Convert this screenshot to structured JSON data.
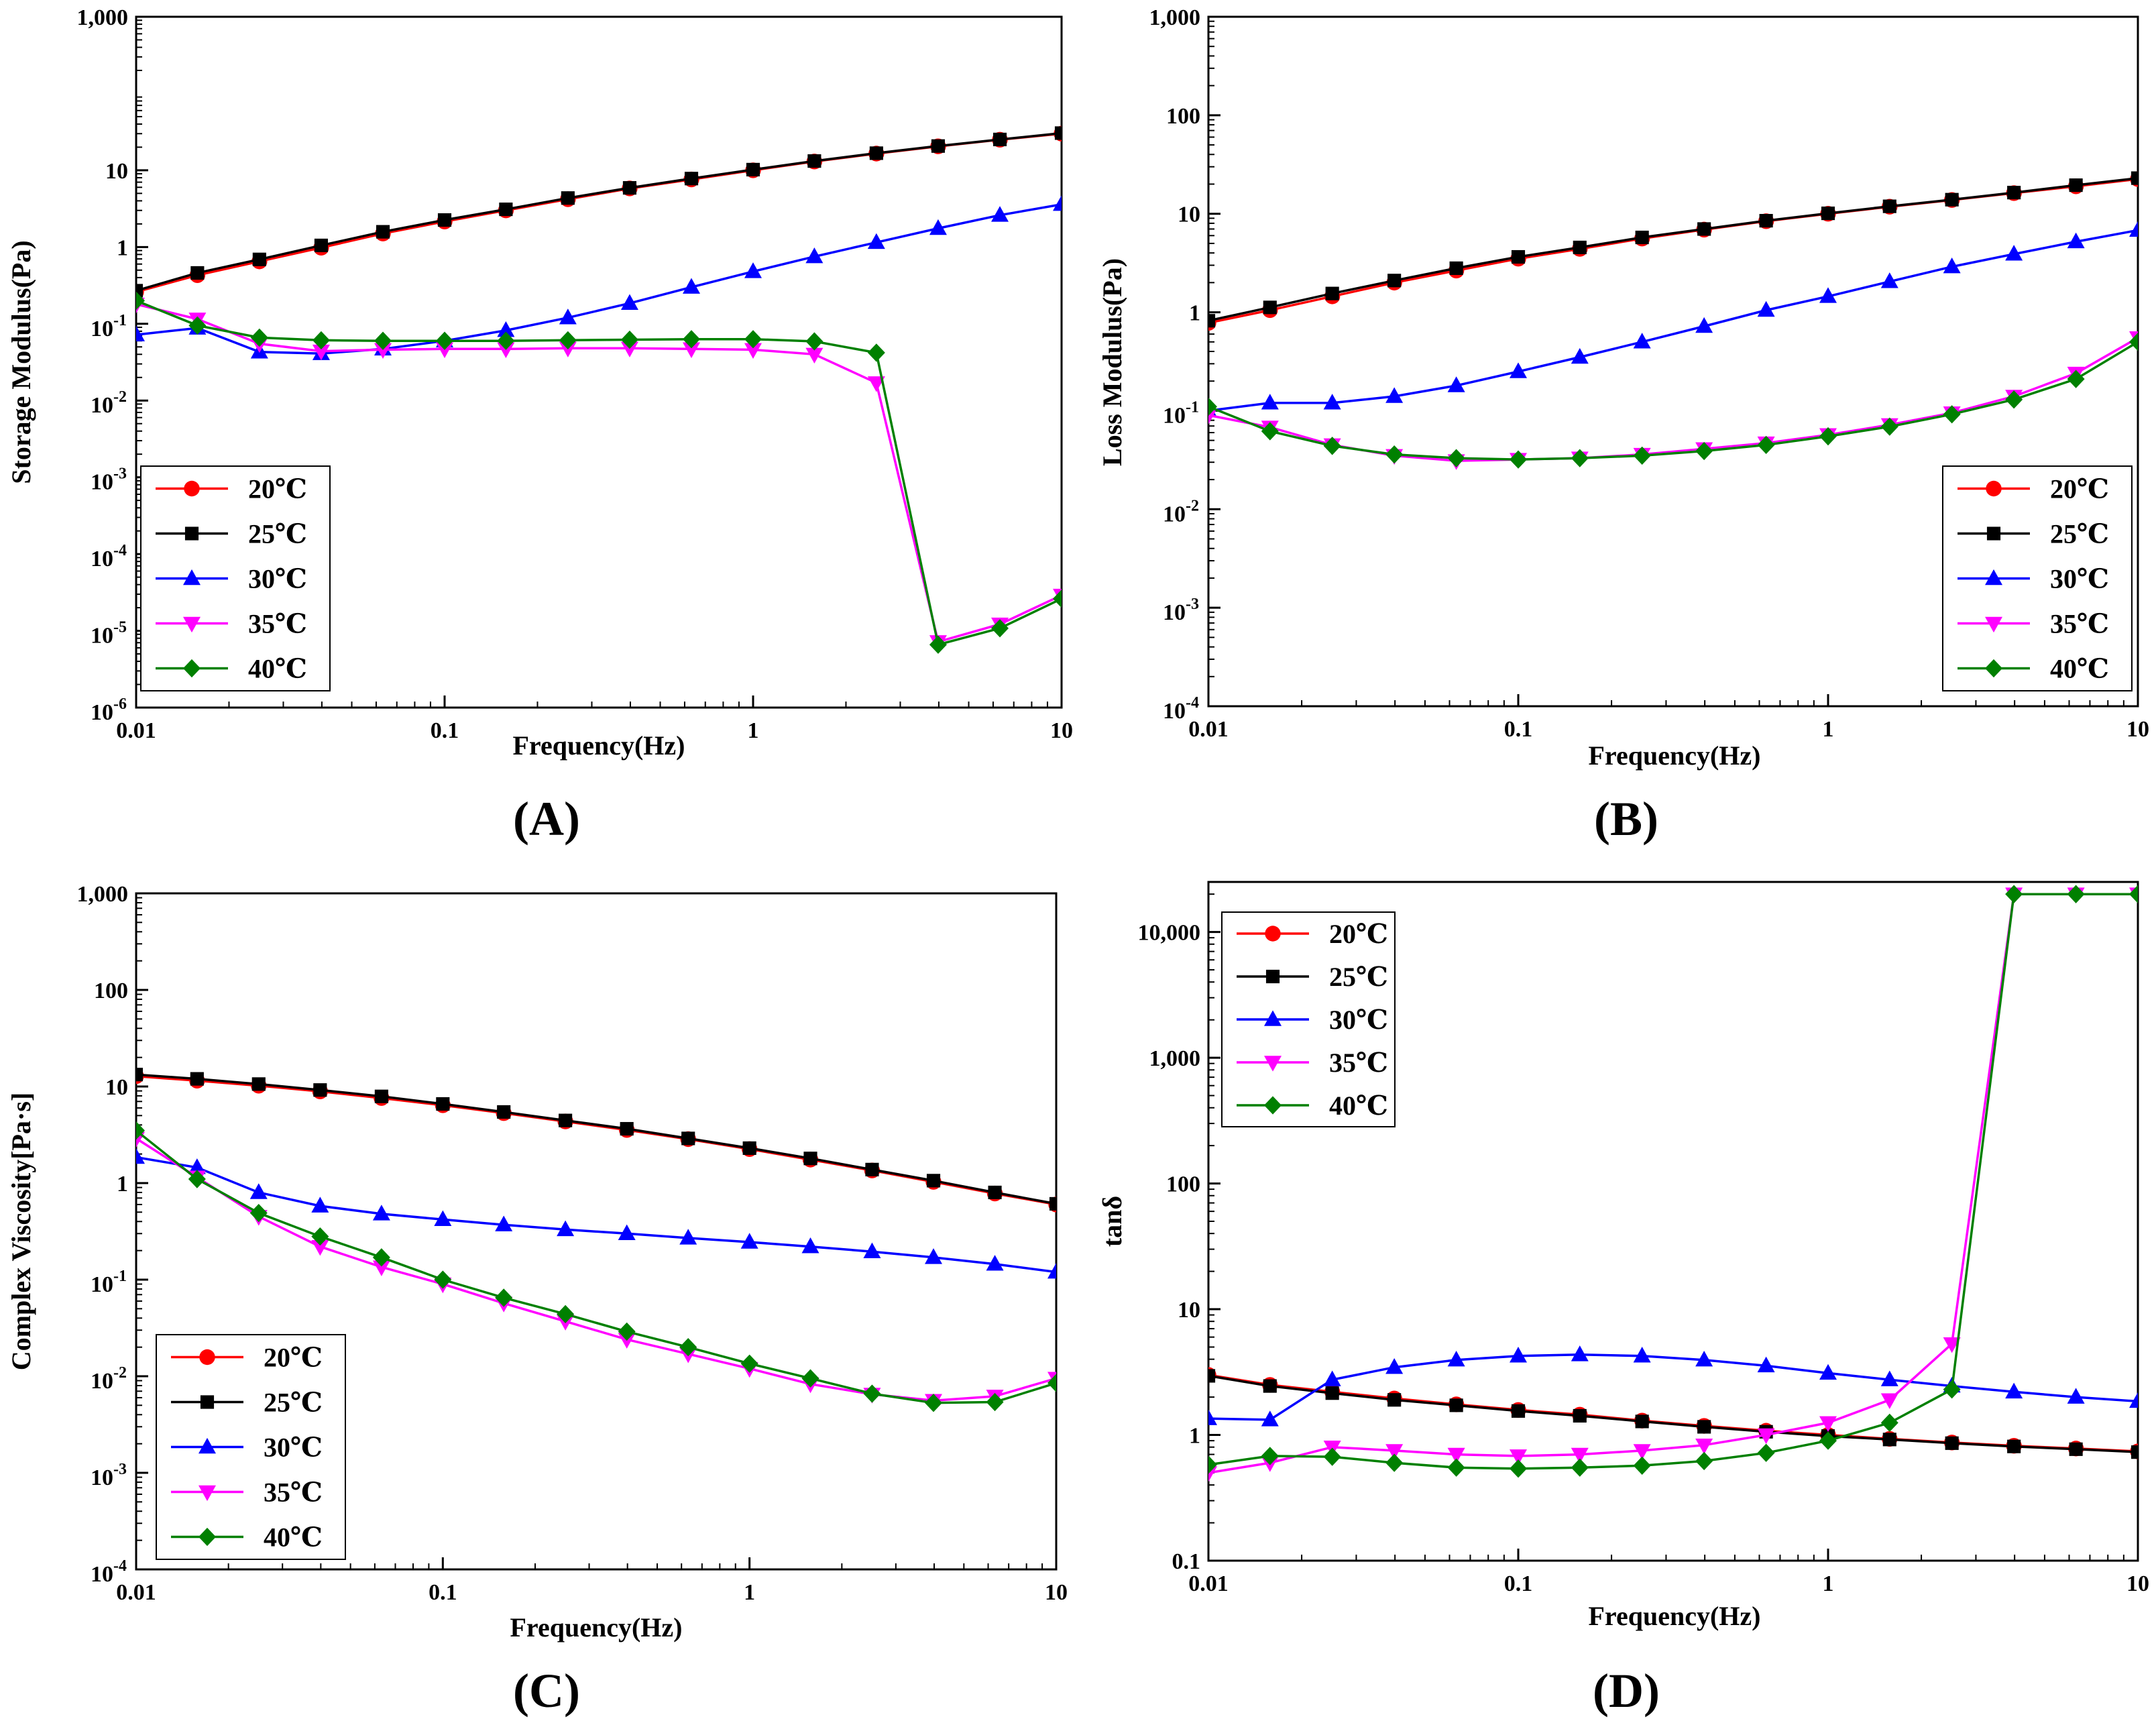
{
  "chart_data": [
    {
      "type": "line",
      "panel_label": "(A)",
      "xlabel": "Frequency(Hz)",
      "ylabel": "Storage Modulus(Pa)",
      "xscale": "log",
      "yscale": "log",
      "xlim": [
        0.01,
        10
      ],
      "ylim": [
        1e-06,
        1000
      ],
      "x_ticks": [
        {
          "v": 0.01,
          "label": "0.01"
        },
        {
          "v": 0.1,
          "label": "0.1"
        },
        {
          "v": 1,
          "label": "1"
        },
        {
          "v": 10,
          "label": "10"
        }
      ],
      "y_ticks": [
        {
          "v": 1000,
          "label": "1,000",
          "style": "plain"
        },
        {
          "v": 10,
          "label": "10",
          "style": "plain"
        },
        {
          "v": 1,
          "label": "1",
          "style": "plain"
        },
        {
          "v": 0.1,
          "label": "10",
          "sup": "-1",
          "style": "pow"
        },
        {
          "v": 0.01,
          "label": "10",
          "sup": "-2",
          "style": "pow"
        },
        {
          "v": 0.001,
          "label": "10",
          "sup": "-3",
          "style": "pow"
        },
        {
          "v": 0.0001,
          "label": "10",
          "sup": "-4",
          "style": "pow"
        },
        {
          "v": 1e-05,
          "label": "10",
          "sup": "-5",
          "style": "pow"
        },
        {
          "v": 1e-06,
          "label": "10",
          "sup": "-6",
          "style": "pow"
        }
      ],
      "legend_position": "bottom-left",
      "x": [
        0.01,
        0.0158,
        0.0251,
        0.0398,
        0.0631,
        0.1,
        0.158,
        0.251,
        0.398,
        0.631,
        1,
        1.58,
        2.51,
        3.98,
        6.31,
        10
      ],
      "series": [
        {
          "name": "20℃",
          "color": "#ff0000",
          "marker": "circle",
          "values": [
            0.26,
            0.43,
            0.65,
            0.98,
            1.5,
            2.15,
            3.0,
            4.2,
            5.8,
            7.6,
            10.0,
            13.0,
            16.5,
            20.5,
            25.0,
            30.0
          ]
        },
        {
          "name": "25℃",
          "color": "#000000",
          "marker": "square",
          "values": [
            0.27,
            0.46,
            0.69,
            1.05,
            1.58,
            2.25,
            3.1,
            4.35,
            5.9,
            7.8,
            10.2,
            13.2,
            16.7,
            20.7,
            25.2,
            30.5
          ]
        },
        {
          "name": "30℃",
          "color": "#0000ff",
          "marker": "triangle-up",
          "values": [
            0.072,
            0.088,
            0.043,
            0.041,
            0.047,
            0.06,
            0.082,
            0.12,
            0.185,
            0.3,
            0.48,
            0.75,
            1.15,
            1.75,
            2.6,
            3.6
          ]
        },
        {
          "name": "35℃",
          "color": "#ff00ff",
          "marker": "triangle-down",
          "values": [
            0.18,
            0.115,
            0.055,
            0.044,
            0.046,
            0.047,
            0.047,
            0.048,
            0.048,
            0.047,
            0.046,
            0.04,
            0.017,
            7.2e-06,
            1.22e-05,
            2.9e-05
          ]
        },
        {
          "name": "40℃",
          "color": "#008000",
          "marker": "diamond",
          "values": [
            0.2,
            0.095,
            0.066,
            0.061,
            0.06,
            0.06,
            0.06,
            0.061,
            0.062,
            0.063,
            0.063,
            0.059,
            0.042,
            6.6e-06,
            1.08e-05,
            2.62e-05
          ]
        }
      ]
    },
    {
      "type": "line",
      "panel_label": "(B)",
      "xlabel": "Frequency(Hz)",
      "ylabel": "Loss Modulus(Pa)",
      "xscale": "log",
      "yscale": "log",
      "xlim": [
        0.01,
        10
      ],
      "ylim": [
        0.0001,
        1000
      ],
      "x_ticks": [
        {
          "v": 0.01,
          "label": "0.01"
        },
        {
          "v": 0.1,
          "label": "0.1"
        },
        {
          "v": 1,
          "label": "1"
        },
        {
          "v": 10,
          "label": "10"
        }
      ],
      "y_ticks": [
        {
          "v": 1000,
          "label": "1,000",
          "style": "plain"
        },
        {
          "v": 100,
          "label": "100",
          "style": "plain"
        },
        {
          "v": 10,
          "label": "10",
          "style": "plain"
        },
        {
          "v": 1,
          "label": "1",
          "style": "plain"
        },
        {
          "v": 0.1,
          "label": "10",
          "sup": "-1",
          "style": "pow"
        },
        {
          "v": 0.01,
          "label": "10",
          "sup": "-2",
          "style": "pow"
        },
        {
          "v": 0.001,
          "label": "10",
          "sup": "-3",
          "style": "pow"
        },
        {
          "v": 0.0001,
          "label": "10",
          "sup": "-4",
          "style": "pow"
        }
      ],
      "legend_position": "bottom-right",
      "x": [
        0.01,
        0.0158,
        0.0251,
        0.0398,
        0.0631,
        0.1,
        0.158,
        0.251,
        0.398,
        0.631,
        1,
        1.58,
        2.51,
        3.98,
        6.31,
        10
      ],
      "series": [
        {
          "name": "20℃",
          "color": "#ff0000",
          "marker": "circle",
          "values": [
            0.78,
            1.05,
            1.45,
            2.0,
            2.65,
            3.5,
            4.4,
            5.6,
            6.9,
            8.4,
            10.0,
            11.8,
            13.8,
            16.2,
            19.0,
            22.5
          ]
        },
        {
          "name": "25℃",
          "color": "#000000",
          "marker": "square",
          "values": [
            0.82,
            1.12,
            1.55,
            2.1,
            2.8,
            3.65,
            4.55,
            5.75,
            7.0,
            8.5,
            10.1,
            11.9,
            13.9,
            16.4,
            19.5,
            23.0
          ]
        },
        {
          "name": "30℃",
          "color": "#0000ff",
          "marker": "triangle-up",
          "values": [
            0.1,
            0.12,
            0.12,
            0.14,
            0.18,
            0.25,
            0.35,
            0.5,
            0.72,
            1.05,
            1.45,
            2.05,
            2.9,
            3.9,
            5.2,
            6.8
          ]
        },
        {
          "name": "35℃",
          "color": "#ff00ff",
          "marker": "triangle-down",
          "values": [
            0.09,
            0.068,
            0.045,
            0.035,
            0.031,
            0.032,
            0.033,
            0.036,
            0.041,
            0.047,
            0.057,
            0.072,
            0.095,
            0.14,
            0.24,
            0.55
          ]
        },
        {
          "name": "40℃",
          "color": "#008000",
          "marker": "diamond",
          "values": [
            0.11,
            0.062,
            0.044,
            0.036,
            0.033,
            0.032,
            0.033,
            0.035,
            0.039,
            0.045,
            0.055,
            0.069,
            0.092,
            0.13,
            0.21,
            0.5
          ]
        }
      ]
    },
    {
      "type": "line",
      "panel_label": "(C)",
      "xlabel": "Frequency(Hz)",
      "ylabel": "Complex Viscosity[Pa·s]",
      "xscale": "log",
      "yscale": "log",
      "xlim": [
        0.01,
        10
      ],
      "ylim": [
        0.0001,
        1000
      ],
      "x_ticks": [
        {
          "v": 0.01,
          "label": "0.01"
        },
        {
          "v": 0.1,
          "label": "0.1"
        },
        {
          "v": 1,
          "label": "1"
        },
        {
          "v": 10,
          "label": "10"
        }
      ],
      "y_ticks": [
        {
          "v": 1000,
          "label": "1,000",
          "style": "plain"
        },
        {
          "v": 100,
          "label": "100",
          "style": "plain"
        },
        {
          "v": 10,
          "label": "10",
          "style": "plain"
        },
        {
          "v": 1,
          "label": "1",
          "style": "plain"
        },
        {
          "v": 0.1,
          "label": "10",
          "sup": "-1",
          "style": "pow"
        },
        {
          "v": 0.01,
          "label": "10",
          "sup": "-2",
          "style": "pow"
        },
        {
          "v": 0.001,
          "label": "10",
          "sup": "-3",
          "style": "pow"
        },
        {
          "v": 0.0001,
          "label": "10",
          "sup": "-4",
          "style": "pow"
        }
      ],
      "legend_position": "bottom-left",
      "x": [
        0.01,
        0.0158,
        0.0251,
        0.0398,
        0.0631,
        0.1,
        0.158,
        0.251,
        0.398,
        0.631,
        1,
        1.58,
        2.51,
        3.98,
        6.31,
        10
      ],
      "series": [
        {
          "name": "20℃",
          "color": "#ff0000",
          "marker": "circle",
          "values": [
            12.8,
            11.5,
            10.2,
            8.9,
            7.6,
            6.4,
            5.3,
            4.35,
            3.55,
            2.85,
            2.25,
            1.75,
            1.35,
            1.03,
            0.78,
            0.6
          ]
        },
        {
          "name": "25℃",
          "color": "#000000",
          "marker": "square",
          "values": [
            13.3,
            12.0,
            10.6,
            9.2,
            7.9,
            6.6,
            5.45,
            4.45,
            3.65,
            2.9,
            2.3,
            1.8,
            1.38,
            1.06,
            0.8,
            0.61
          ]
        },
        {
          "name": "30℃",
          "color": "#0000ff",
          "marker": "triangle-up",
          "values": [
            1.85,
            1.45,
            0.8,
            0.58,
            0.48,
            0.42,
            0.37,
            0.33,
            0.3,
            0.27,
            0.245,
            0.22,
            0.195,
            0.17,
            0.145,
            0.12
          ]
        },
        {
          "name": "35℃",
          "color": "#ff00ff",
          "marker": "triangle-down",
          "values": [
            2.9,
            1.15,
            0.45,
            0.22,
            0.135,
            0.09,
            0.057,
            0.037,
            0.024,
            0.017,
            0.012,
            0.0083,
            0.0065,
            0.0056,
            0.0062,
            0.0095
          ]
        },
        {
          "name": "40℃",
          "color": "#008000",
          "marker": "diamond",
          "values": [
            3.5,
            1.1,
            0.49,
            0.28,
            0.17,
            0.1,
            0.065,
            0.044,
            0.029,
            0.02,
            0.0135,
            0.0095,
            0.0066,
            0.0053,
            0.0054,
            0.0085
          ]
        }
      ]
    },
    {
      "type": "line",
      "panel_label": "(D)",
      "xlabel": "Frequency(Hz)",
      "ylabel": "tanδ",
      "xscale": "log",
      "yscale": "log",
      "xlim": [
        0.01,
        10
      ],
      "ylim": [
        0.1,
        25000
      ],
      "x_ticks": [
        {
          "v": 0.01,
          "label": "0.01"
        },
        {
          "v": 0.1,
          "label": "0.1"
        },
        {
          "v": 1,
          "label": "1"
        },
        {
          "v": 10,
          "label": "10"
        }
      ],
      "y_ticks": [
        {
          "v": 10000,
          "label": "10,000",
          "style": "plain"
        },
        {
          "v": 1000,
          "label": "1,000",
          "style": "plain"
        },
        {
          "v": 100,
          "label": "100",
          "style": "plain"
        },
        {
          "v": 10,
          "label": "10",
          "style": "plain"
        },
        {
          "v": 1,
          "label": "1",
          "style": "plain"
        },
        {
          "v": 0.1,
          "label": "0.1",
          "style": "plain"
        }
      ],
      "legend_position": "top-left",
      "x": [
        0.01,
        0.0158,
        0.0251,
        0.0398,
        0.0631,
        0.1,
        0.158,
        0.251,
        0.398,
        0.631,
        1,
        1.58,
        2.51,
        3.98,
        6.31,
        10
      ],
      "series": [
        {
          "name": "20℃",
          "color": "#ff0000",
          "marker": "circle",
          "values": [
            3.0,
            2.5,
            2.2,
            1.95,
            1.75,
            1.58,
            1.45,
            1.3,
            1.18,
            1.08,
            1.0,
            0.93,
            0.87,
            0.82,
            0.78,
            0.74
          ]
        },
        {
          "name": "25℃",
          "color": "#000000",
          "marker": "square",
          "values": [
            2.95,
            2.45,
            2.15,
            1.9,
            1.72,
            1.55,
            1.42,
            1.28,
            1.16,
            1.06,
            0.98,
            0.92,
            0.86,
            0.81,
            0.77,
            0.73
          ]
        },
        {
          "name": "30℃",
          "color": "#0000ff",
          "marker": "triangle-up",
          "values": [
            1.35,
            1.32,
            2.75,
            3.45,
            3.95,
            4.25,
            4.35,
            4.25,
            3.95,
            3.55,
            3.1,
            2.75,
            2.45,
            2.2,
            2.0,
            1.85
          ]
        },
        {
          "name": "35℃",
          "color": "#ff00ff",
          "marker": "triangle-down",
          "values": [
            0.5,
            0.6,
            0.8,
            0.75,
            0.7,
            0.68,
            0.7,
            0.75,
            0.83,
            1.0,
            1.25,
            1.9,
            5.3,
            20000,
            20000,
            20000
          ]
        },
        {
          "name": "40℃",
          "color": "#008000",
          "marker": "diamond",
          "values": [
            0.58,
            0.68,
            0.67,
            0.6,
            0.55,
            0.54,
            0.55,
            0.57,
            0.62,
            0.72,
            0.9,
            1.25,
            2.3,
            20000,
            20000,
            20000
          ]
        }
      ]
    }
  ]
}
